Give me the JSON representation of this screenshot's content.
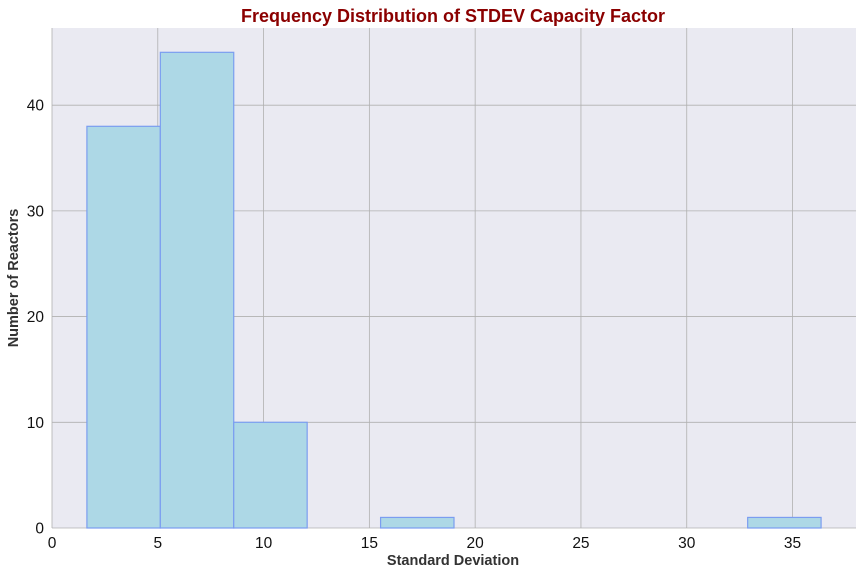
{
  "chart_data": {
    "type": "bar",
    "title": "Frequency Distribution of STDEV Capacity Factor",
    "xlabel": "Standard Deviation",
    "ylabel": "Number of Reactors",
    "xlim": [
      0,
      38
    ],
    "ylim": [
      0,
      47.3
    ],
    "xticks": [
      0,
      5,
      10,
      15,
      20,
      25,
      30,
      35
    ],
    "yticks": [
      0,
      10,
      20,
      30,
      40
    ],
    "grid": true,
    "bins": [
      {
        "start": 1.65,
        "end": 5.12,
        "count": 38
      },
      {
        "start": 5.12,
        "end": 8.59,
        "count": 45
      },
      {
        "start": 8.59,
        "end": 12.06,
        "count": 10
      },
      {
        "start": 12.06,
        "end": 15.53,
        "count": 0
      },
      {
        "start": 15.53,
        "end": 19.0,
        "count": 1
      },
      {
        "start": 19.0,
        "end": 22.47,
        "count": 0
      },
      {
        "start": 22.47,
        "end": 25.94,
        "count": 0
      },
      {
        "start": 25.94,
        "end": 29.41,
        "count": 0
      },
      {
        "start": 29.41,
        "end": 32.88,
        "count": 0
      },
      {
        "start": 32.88,
        "end": 36.35,
        "count": 1
      }
    ],
    "colors": {
      "bar_fill": "#add8e6",
      "bar_edge": "#7b9df0",
      "plot_background": "#eaeaf2",
      "grid": "#b0b0b0",
      "title": "#8b0000"
    }
  }
}
